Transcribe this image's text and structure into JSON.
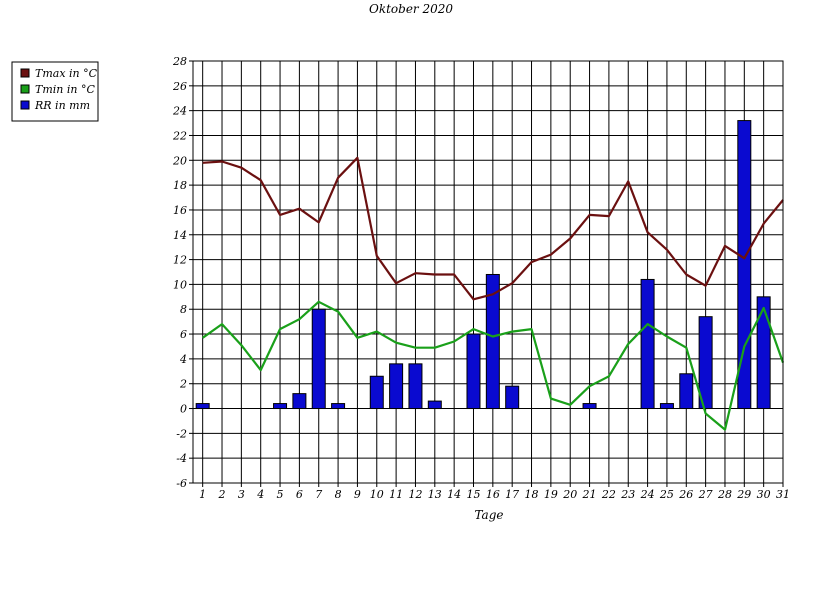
{
  "chart_data": {
    "type": "bar+line",
    "title": "Oktober 2020",
    "xlabel": "Tage",
    "ylabel": "",
    "ylim": [
      -6,
      28
    ],
    "yticks": [
      -6,
      -4,
      -2,
      0,
      2,
      4,
      6,
      8,
      10,
      12,
      14,
      16,
      18,
      20,
      22,
      24,
      26,
      28
    ],
    "grid": true,
    "legend_position": "top-left outside",
    "categories": [
      "1",
      "2",
      "3",
      "4",
      "5",
      "6",
      "7",
      "8",
      "9",
      "10",
      "11",
      "12",
      "13",
      "14",
      "15",
      "16",
      "17",
      "18",
      "19",
      "20",
      "21",
      "22",
      "23",
      "24",
      "25",
      "26",
      "27",
      "28",
      "29",
      "30",
      "31"
    ],
    "series": [
      {
        "name": "Tmax in °C",
        "kind": "line",
        "color": "#6b1010",
        "values": [
          19.8,
          19.9,
          19.4,
          18.4,
          15.6,
          16.1,
          15.0,
          18.6,
          20.2,
          12.3,
          10.1,
          10.9,
          10.8,
          10.8,
          8.8,
          9.2,
          10.1,
          11.8,
          12.4,
          13.7,
          15.6,
          15.5,
          18.3,
          14.2,
          12.8,
          10.8,
          9.9,
          13.1,
          12.1,
          14.9,
          16.8
        ]
      },
      {
        "name": "Tmin in °C",
        "kind": "line",
        "color": "#1aa01a",
        "values": [
          5.7,
          6.8,
          5.1,
          3.1,
          6.4,
          7.2,
          8.6,
          7.8,
          5.7,
          6.2,
          5.3,
          4.9,
          4.9,
          5.4,
          6.4,
          5.8,
          6.2,
          6.4,
          0.8,
          0.3,
          1.8,
          2.6,
          5.2,
          6.8,
          5.8,
          4.9,
          -0.4,
          -1.7,
          5.0,
          8.1,
          3.7
        ]
      },
      {
        "name": "RR in mm",
        "kind": "bar",
        "color": "#0a0ad0",
        "values": [
          0.4,
          0,
          0,
          0,
          0.4,
          1.2,
          8.0,
          0.4,
          0,
          2.6,
          3.6,
          3.6,
          0.6,
          0,
          6.0,
          10.8,
          1.8,
          0,
          0,
          0,
          0.4,
          0,
          0,
          10.4,
          0.4,
          2.8,
          7.4,
          0,
          23.2,
          9.0,
          0
        ]
      }
    ]
  }
}
